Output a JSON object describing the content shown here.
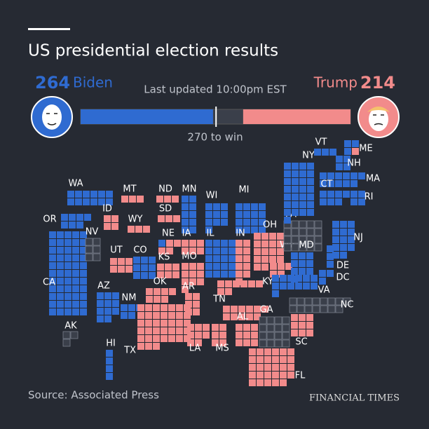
{
  "header": {
    "title": "US presidential election results",
    "last_updated": "Last updated 10:00pm EST"
  },
  "candidates": [
    {
      "name": "Biden",
      "votes": 264,
      "color": "#2f6bd1"
    },
    {
      "name": "Trump",
      "votes": 214,
      "color": "#f28b8b"
    }
  ],
  "bar": {
    "xlim": [
      0,
      538
    ],
    "threshold": 270,
    "threshold_label": "270 to win",
    "pending_color": "#3a3f4a"
  },
  "states": [
    {
      "code": "WA",
      "D": 12
    },
    {
      "code": "OR",
      "D": 7
    },
    {
      "code": "CA",
      "D": 55
    },
    {
      "code": "NV",
      "P": 6
    },
    {
      "code": "ID",
      "R": 4
    },
    {
      "code": "MT",
      "R": 3
    },
    {
      "code": "WY",
      "R": 3
    },
    {
      "code": "UT",
      "R": 6
    },
    {
      "code": "CO",
      "D": 9
    },
    {
      "code": "AZ",
      "D": 11
    },
    {
      "code": "NM",
      "D": 5
    },
    {
      "code": "AK",
      "P": 3
    },
    {
      "code": "HI",
      "D": 4
    },
    {
      "code": "ND",
      "R": 3
    },
    {
      "code": "SD",
      "R": 3
    },
    {
      "code": "NE",
      "D": 1,
      "R": 4
    },
    {
      "code": "KS",
      "R": 6
    },
    {
      "code": "OK",
      "R": 7
    },
    {
      "code": "TX",
      "R": 38
    },
    {
      "code": "MN",
      "D": 10
    },
    {
      "code": "IA",
      "R": 6
    },
    {
      "code": "MO",
      "R": 10
    },
    {
      "code": "AR",
      "R": 6
    },
    {
      "code": "LA",
      "R": 8
    },
    {
      "code": "WI",
      "D": 10
    },
    {
      "code": "IL",
      "D": 20
    },
    {
      "code": "MI",
      "D": 16
    },
    {
      "code": "IN",
      "R": 11
    },
    {
      "code": "KY",
      "R": 8
    },
    {
      "code": "TN",
      "R": 11
    },
    {
      "code": "MS",
      "R": 6
    },
    {
      "code": "AL",
      "R": 9
    },
    {
      "code": "OH",
      "R": 18
    },
    {
      "code": "WV",
      "R": 5
    },
    {
      "code": "GA",
      "P": 16
    },
    {
      "code": "FL",
      "R": 29
    },
    {
      "code": "SC",
      "R": 9
    },
    {
      "code": "NC",
      "P": 15
    },
    {
      "code": "VA",
      "D": 13
    },
    {
      "code": "PA",
      "P": 20
    },
    {
      "code": "MD",
      "D": 10
    },
    {
      "code": "DE",
      "D": 3
    },
    {
      "code": "DC",
      "D": 3
    },
    {
      "code": "NJ",
      "D": 14
    },
    {
      "code": "NY",
      "D": 29
    },
    {
      "code": "VT",
      "D": 3
    },
    {
      "code": "NH",
      "D": 4
    },
    {
      "code": "ME",
      "D": 3,
      "R": 1
    },
    {
      "code": "MA",
      "D": 11
    },
    {
      "code": "CT",
      "D": 7
    },
    {
      "code": "RI",
      "D": 4
    }
  ],
  "source": "Source: Associated Press",
  "brand": "FINANCIAL TIMES"
}
